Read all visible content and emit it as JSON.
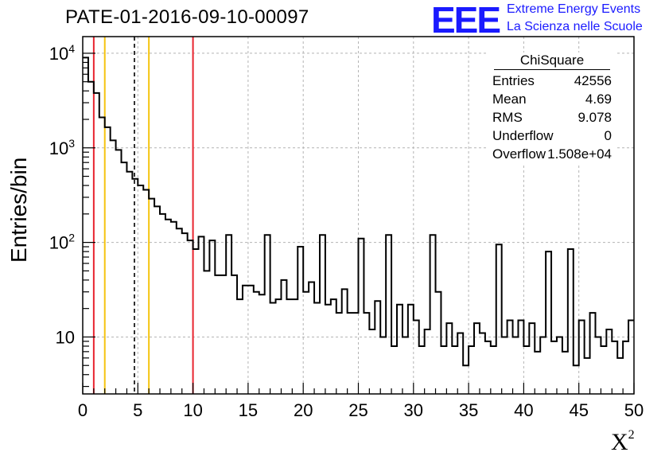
{
  "header": {
    "title": "PATE-01-2016-09-10-00097",
    "logo_mark": "EEE",
    "logo_line1": "Extreme Energy Events",
    "logo_line2": "La Scienza nelle Scuole"
  },
  "stats": {
    "name": "ChiSquare",
    "rows": [
      {
        "label": "Entries",
        "value": "42556"
      },
      {
        "label": "Mean",
        "value": "4.69"
      },
      {
        "label": "RMS",
        "value": "9.078"
      },
      {
        "label": "Underflow",
        "value": "0"
      },
      {
        "label": "Overflow",
        "value": "1.508e+04"
      }
    ]
  },
  "chart_data": {
    "type": "histogram",
    "xlabel": "X",
    "xlabel_sup": "2",
    "ylabel": "Entries/bin",
    "xlim": [
      0,
      50
    ],
    "ylim": [
      2.5,
      15000
    ],
    "yscale": "log",
    "grid": true,
    "bin_width": 0.5,
    "bin_edges_start": 0,
    "x_ticks": [
      0,
      5,
      10,
      15,
      20,
      25,
      30,
      35,
      40,
      45,
      50
    ],
    "y_ticks": [
      {
        "value": 10,
        "label": "10"
      },
      {
        "value": 100,
        "label": "10",
        "sup": "2"
      },
      {
        "value": 1000,
        "label": "10",
        "sup": "3"
      },
      {
        "value": 10000,
        "label": "10",
        "sup": "4"
      }
    ],
    "values": [
      9000,
      5000,
      3800,
      2100,
      1650,
      1200,
      950,
      700,
      560,
      470,
      400,
      360,
      290,
      240,
      200,
      175,
      165,
      140,
      125,
      105,
      85,
      115,
      50,
      105,
      45,
      45,
      120,
      45,
      25,
      35,
      35,
      30,
      28,
      120,
      23,
      25,
      40,
      25,
      25,
      90,
      30,
      38,
      23,
      120,
      22,
      25,
      18,
      32,
      18,
      18,
      110,
      18,
      12,
      24,
      10,
      120,
      8,
      22,
      10,
      22,
      15,
      8,
      12,
      120,
      30,
      8,
      14,
      8,
      11,
      5,
      8,
      14,
      11,
      9,
      8,
      95,
      10,
      15,
      10,
      15,
      8,
      14,
      7,
      10,
      80,
      9,
      10,
      7,
      85,
      5,
      15,
      6,
      18,
      10,
      8,
      12,
      9,
      6,
      9,
      15
    ],
    "vertical_lines": [
      {
        "x": 1.0,
        "color": "#e8242f",
        "style": "solid"
      },
      {
        "x": 2.0,
        "color": "#f5c40f",
        "style": "solid"
      },
      {
        "x": 4.69,
        "color": "#000000",
        "style": "dashed"
      },
      {
        "x": 6.0,
        "color": "#f5c40f",
        "style": "solid"
      },
      {
        "x": 10.0,
        "color": "#e8242f",
        "style": "solid"
      }
    ]
  }
}
